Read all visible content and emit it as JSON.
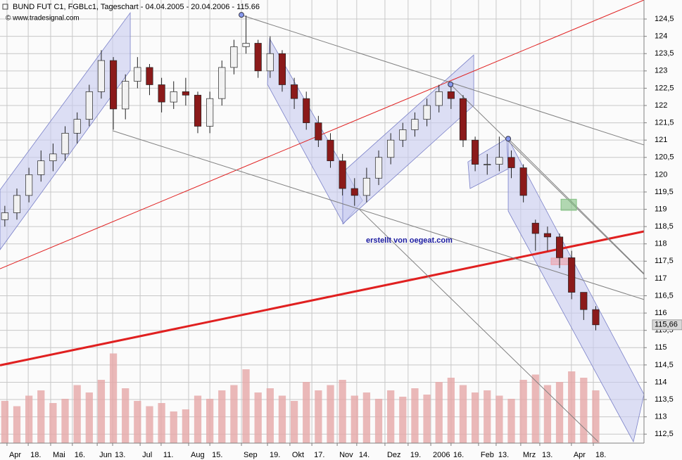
{
  "chart_data": {
    "type": "candlestick",
    "title": "BUND FUT C1, FGBLc1, Tageschart - 04.04.2005 - 20.04.2006 - 115.66",
    "subtitle": "© www.tradesignal.com",
    "annotation": "erstellt von oegeat.com",
    "x": [
      2,
      7,
      12,
      17,
      22,
      27,
      32,
      37,
      42,
      47,
      52,
      57,
      62,
      67,
      72,
      77,
      82,
      87,
      92,
      97,
      102,
      107,
      112,
      117,
      122,
      127,
      132,
      137,
      142,
      147,
      152,
      157,
      162,
      167,
      172,
      177,
      182,
      187,
      192,
      197,
      202,
      207,
      212,
      217,
      222,
      227,
      232,
      237,
      242,
      247
    ],
    "open": [
      118.7,
      118.9,
      119.4,
      120.0,
      120.4,
      120.6,
      121.2,
      121.6,
      122.4,
      123.3,
      121.9,
      122.7,
      123.1,
      122.6,
      122.1,
      122.4,
      122.3,
      121.4,
      122.2,
      123.1,
      123.7,
      123.8,
      123.0,
      123.5,
      122.6,
      122.2,
      121.5,
      121.0,
      120.4,
      119.6,
      119.4,
      119.9,
      120.5,
      121.0,
      121.3,
      121.6,
      122.0,
      122.4,
      122.2,
      121.0,
      120.3,
      120.3,
      120.5,
      120.2,
      118.6,
      118.3,
      118.2,
      117.6,
      116.6,
      116.1
    ],
    "high": [
      119.1,
      119.6,
      120.2,
      120.7,
      120.9,
      121.4,
      121.8,
      122.6,
      123.6,
      123.4,
      122.9,
      123.4,
      123.2,
      122.8,
      122.7,
      122.8,
      122.4,
      122.4,
      123.3,
      123.9,
      124.6,
      123.9,
      124.0,
      123.6,
      122.8,
      122.4,
      121.7,
      121.2,
      120.6,
      119.9,
      120.2,
      120.7,
      121.2,
      121.5,
      121.8,
      122.2,
      122.6,
      122.6,
      122.3,
      121.1,
      120.6,
      121.1,
      120.7,
      120.3,
      118.7,
      118.5,
      118.3,
      117.8,
      116.6,
      116.2
    ],
    "low": [
      118.5,
      118.7,
      119.2,
      119.8,
      120.1,
      120.4,
      120.9,
      121.4,
      122.2,
      121.3,
      121.6,
      122.5,
      122.3,
      121.8,
      121.9,
      122.0,
      121.2,
      121.2,
      122.0,
      122.9,
      123.5,
      122.8,
      122.8,
      122.4,
      121.9,
      121.3,
      120.8,
      120.2,
      119.4,
      119.1,
      119.2,
      119.7,
      120.3,
      120.8,
      121.1,
      121.4,
      121.8,
      121.9,
      120.8,
      120.1,
      120.0,
      120.1,
      119.9,
      119.2,
      117.8,
      117.8,
      117.3,
      116.4,
      115.8,
      115.5
    ],
    "close": [
      118.9,
      119.4,
      120.0,
      120.4,
      120.6,
      121.2,
      121.6,
      122.4,
      123.3,
      121.9,
      122.7,
      123.1,
      122.6,
      122.1,
      122.4,
      122.3,
      121.4,
      122.2,
      123.1,
      123.7,
      123.8,
      123.0,
      123.5,
      122.6,
      122.2,
      121.5,
      121.0,
      120.4,
      119.6,
      119.4,
      119.9,
      120.5,
      121.0,
      121.3,
      121.6,
      122.0,
      122.4,
      122.2,
      121.0,
      120.3,
      120.3,
      120.5,
      120.2,
      119.4,
      118.3,
      118.2,
      117.6,
      116.6,
      116.1,
      115.66
    ],
    "up_color": "#f2f2f2",
    "down_color": "#8b1a1a",
    "volume": {
      "values": [
        40,
        35,
        45,
        50,
        38,
        42,
        55,
        48,
        60,
        85,
        52,
        40,
        35,
        38,
        30,
        32,
        45,
        42,
        50,
        55,
        70,
        48,
        52,
        45,
        40,
        58,
        50,
        55,
        60,
        45,
        48,
        42,
        50,
        44,
        52,
        46,
        58,
        62,
        55,
        48,
        50,
        45,
        42,
        60,
        65,
        55,
        58,
        68,
        62,
        50
      ],
      "ylim": [
        0,
        100
      ],
      "color": "#e6a8a8"
    },
    "xlim": [
      0,
      267
    ],
    "ylim": [
      112.24,
      125.05
    ],
    "xticks": [
      {
        "value": 2.9,
        "label": "Apr"
      },
      {
        "value": 11.7,
        "label": "18."
      },
      {
        "value": 21,
        "label": "Mai"
      },
      {
        "value": 30,
        "label": "16."
      },
      {
        "value": 40.3,
        "label": "Jun"
      },
      {
        "value": 46.7,
        "label": "13."
      },
      {
        "value": 58.1,
        "label": "Jul"
      },
      {
        "value": 66.8,
        "label": "11."
      },
      {
        "value": 78.2,
        "label": "Aug"
      },
      {
        "value": 87,
        "label": "15."
      },
      {
        "value": 100.1,
        "label": "Sep"
      },
      {
        "value": 110.9,
        "label": "19."
      },
      {
        "value": 120.2,
        "label": "Okt"
      },
      {
        "value": 129.3,
        "label": "17."
      },
      {
        "value": 139.8,
        "label": "Nov"
      },
      {
        "value": 147.9,
        "label": "14."
      },
      {
        "value": 159.6,
        "label": "Dez"
      },
      {
        "value": 169.2,
        "label": "19."
      },
      {
        "value": 178.6,
        "label": "2006"
      },
      {
        "value": 187,
        "label": "16."
      },
      {
        "value": 198.4,
        "label": "Feb"
      },
      {
        "value": 205.7,
        "label": "13."
      },
      {
        "value": 215.9,
        "label": "Mrz"
      },
      {
        "value": 223.8,
        "label": "13."
      },
      {
        "value": 236.9,
        "label": "Apr"
      },
      {
        "value": 246,
        "label": "18."
      }
    ],
    "yticks": [
      {
        "value": 112.5,
        "label": "112,5"
      },
      113,
      {
        "value": 113.5,
        "label": "113,5"
      },
      114,
      {
        "value": 114.5,
        "label": "114,5"
      },
      115,
      {
        "value": 115.5,
        "label": "115,5"
      },
      116,
      {
        "value": 116.5,
        "label": "116,5"
      },
      117,
      {
        "value": 117.5,
        "label": "117,5"
      },
      118,
      {
        "value": 118.5,
        "label": "118,5"
      },
      119,
      {
        "value": 119.5,
        "label": "119,5"
      },
      120,
      {
        "value": 120.5,
        "label": "120,5"
      },
      121,
      {
        "value": 121.5,
        "label": "121,5"
      },
      122,
      {
        "value": 122.5,
        "label": "122,5"
      },
      123,
      {
        "value": 123.5,
        "label": "123,5"
      },
      124,
      {
        "value": 124.5,
        "label": "124,5"
      }
    ],
    "last_price": {
      "value": 115.66,
      "label": "115,66"
    },
    "grid": true,
    "channels": [
      {
        "x": [
          0,
          54.0,
          54.0,
          0
        ],
        "y": [
          117.83,
          123.02,
          124.68,
          119.56
        ]
      },
      {
        "x": [
          111.8,
          150.3,
          142.4,
          110.9
        ],
        "y": [
          123.93,
          119.25,
          118.58,
          122.61
        ]
      },
      {
        "x": [
          142.1,
          196.4,
          196.4,
          142.1
        ],
        "y": [
          120.07,
          123.46,
          122.0,
          118.58
        ]
      },
      {
        "x": [
          194.0,
          210.1,
          210.7,
          194.9
        ],
        "y": [
          120.37,
          121.04,
          120.17,
          119.6
        ]
      },
      {
        "x": [
          210.7,
          267,
          262.6,
          210.7
        ],
        "y": [
          121.04,
          113.65,
          112.28,
          118.95
        ]
      }
    ],
    "channel_color": "#c8ccf0",
    "lines": [
      {
        "x": [
          0,
          267
        ],
        "y": [
          117.28,
          125.05
        ],
        "color": "#e02020",
        "style": "thin"
      },
      {
        "x": [
          0,
          267
        ],
        "y": [
          114.49,
          118.36
        ],
        "color": "#e02020",
        "style": "thick"
      },
      {
        "x": [
          100.7,
          267
        ],
        "y": [
          124.6,
          120.86
        ],
        "color": "#808080",
        "style": "thin"
      },
      {
        "x": [
          46.7,
          267
        ],
        "y": [
          121.27,
          116.39
        ],
        "color": "#808080",
        "style": "thin"
      },
      {
        "x": [
          186.8,
          267
        ],
        "y": [
          122.61,
          117.12
        ],
        "color": "#808080",
        "style": "thin"
      },
      {
        "x": [
          148.8,
          248
        ],
        "y": [
          119.01,
          112.28
        ],
        "color": "#808080",
        "style": "thin"
      },
      {
        "x": [
          210.7,
          267
        ],
        "y": [
          121.04,
          117.14
        ],
        "color": "#808080",
        "style": "thin"
      }
    ],
    "boxes": [
      {
        "x": [
          232.6,
          239.0
        ],
        "y": [
          119.29,
          118.97
        ],
        "color": "#80c080"
      },
      {
        "x": [
          228.5,
          236.4
        ],
        "y": [
          117.59,
          117.4
        ],
        "color": "#f0a0a8"
      }
    ],
    "pivots": {
      "x": [
        100.1,
        186.8,
        210.7
      ],
      "y": [
        124.62,
        122.61,
        121.04
      ],
      "color": "#8899ee"
    }
  }
}
